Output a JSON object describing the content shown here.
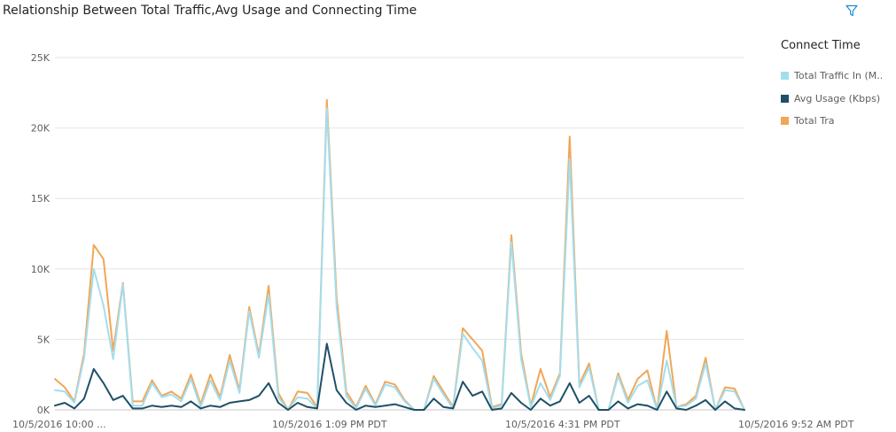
{
  "title": "Relationship Between Total Traffic,Avg Usage and Connecting Time",
  "filter_icon": "filter-icon",
  "colors": {
    "total_traffic_in": "#a3def0",
    "avg_usage": "#1f5068",
    "total_tra": "#f2a654",
    "gridline": "#e6e6e6",
    "cursor": "#4d4d4d"
  },
  "chart_data": {
    "type": "line",
    "title": "Relationship Between Total Traffic,Avg Usage and Connecting Time",
    "xlabel": "",
    "ylabel": "",
    "ylim": [
      0,
      25000
    ],
    "y_ticks": [
      0,
      5000,
      10000,
      15000,
      20000,
      25000
    ],
    "y_tick_labels": [
      "0K",
      "5K",
      "10K",
      "15K",
      "20K",
      "25K"
    ],
    "x_tick_labels": [
      {
        "index": 0,
        "label": "10/5/2016 10:00 ..."
      },
      {
        "index": 23,
        "label": "10/5/2016 1:09 PM PDT"
      },
      {
        "index": 47,
        "label": "10/5/2016 4:31 PM PDT"
      },
      {
        "index": 71,
        "label": "10/5/2016 9:52 AM PDT"
      }
    ],
    "grid": true,
    "legend_title": "Connect Time",
    "legend_position": "right",
    "cursor_index": 91,
    "series": [
      {
        "name": "Total Tra",
        "color": "#f2a654",
        "values": [
          2200,
          1600,
          600,
          4000,
          11700,
          10700,
          4200,
          9000,
          600,
          600,
          2100,
          1000,
          1300,
          800,
          2500,
          400,
          2500,
          900,
          3900,
          1400,
          7300,
          3900,
          8800,
          1200,
          0,
          1300,
          1200,
          200,
          22000,
          8000,
          1300,
          200,
          1700,
          400,
          2000,
          1800,
          700,
          0,
          0,
          2400,
          1300,
          200,
          5800,
          5000,
          4200,
          200,
          400,
          12400,
          4000,
          300,
          2900,
          900,
          2600,
          19400,
          1800,
          3300,
          0,
          0,
          2600,
          700,
          2200,
          2800,
          0,
          5600,
          200,
          400,
          1000,
          3700,
          0,
          1600,
          1500,
          0
        ]
      },
      {
        "name": "Total Traffic In (M..",
        "color": "#a3def0",
        "values": [
          1400,
          1300,
          500,
          3700,
          10000,
          7400,
          3600,
          8900,
          300,
          300,
          1900,
          900,
          1100,
          600,
          2200,
          200,
          2100,
          700,
          3500,
          1200,
          7000,
          3700,
          8200,
          900,
          0,
          900,
          800,
          100,
          21400,
          7300,
          1000,
          100,
          1500,
          300,
          1800,
          1600,
          600,
          0,
          0,
          2200,
          1100,
          100,
          5400,
          4400,
          3500,
          100,
          300,
          11900,
          3600,
          200,
          1900,
          700,
          2400,
          17800,
          1600,
          3000,
          0,
          0,
          2400,
          500,
          1700,
          2100,
          0,
          3500,
          200,
          300,
          800,
          3300,
          0,
          1400,
          1300,
          0
        ]
      },
      {
        "name": "Avg Usage (Kbps)",
        "color": "#1f5068",
        "values": [
          300,
          500,
          100,
          800,
          2900,
          1900,
          700,
          1000,
          100,
          100,
          300,
          200,
          300,
          200,
          600,
          100,
          300,
          200,
          500,
          600,
          700,
          1000,
          1900,
          500,
          0,
          500,
          200,
          100,
          4700,
          1400,
          500,
          0,
          300,
          200,
          300,
          400,
          200,
          0,
          0,
          800,
          200,
          100,
          2000,
          1000,
          1300,
          0,
          100,
          1200,
          500,
          0,
          800,
          300,
          600,
          1900,
          500,
          1000,
          0,
          0,
          600,
          100,
          400,
          300,
          0,
          1300,
          100,
          0,
          300,
          700,
          0,
          600,
          100,
          0
        ]
      }
    ]
  }
}
